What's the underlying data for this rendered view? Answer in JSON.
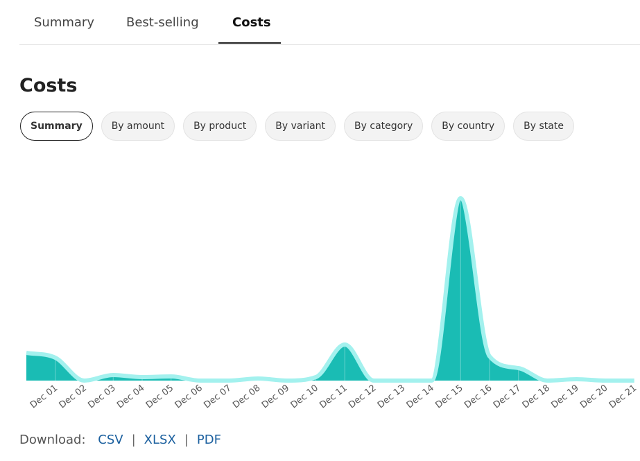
{
  "tabs": [
    "Summary",
    "Best-selling",
    "Costs"
  ],
  "active_tab": 2,
  "heading": "Costs",
  "filters": [
    "Summary",
    "By amount",
    "By product",
    "By variant",
    "By category",
    "By country",
    "By state"
  ],
  "active_filter": 0,
  "chart_data": {
    "type": "area",
    "categories": [
      null,
      "Dec 01",
      "Dec 02",
      "Dec 03",
      "Dec 04",
      "Dec 05",
      "Dec 06",
      "Dec 07",
      "Dec 08",
      "Dec 09",
      "Dec 10",
      "Dec 11",
      "Dec 12",
      "Dec 13",
      "Dec 14",
      "Dec 15",
      "Dec 16",
      "Dec 17",
      "Dec 18",
      "Dec 19",
      "Dec 20",
      "Dec 21"
    ],
    "values": [
      40,
      33,
      0,
      8,
      5,
      6,
      0,
      0,
      3,
      0,
      5,
      52,
      0,
      0,
      0,
      263,
      35,
      18,
      0,
      2,
      0,
      0
    ],
    "color": "#1abcb4",
    "line_color": "#a3f1ee"
  },
  "download": {
    "label": "Download:",
    "links": [
      "CSV",
      "XLSX",
      "PDF"
    ],
    "separator": "|"
  }
}
